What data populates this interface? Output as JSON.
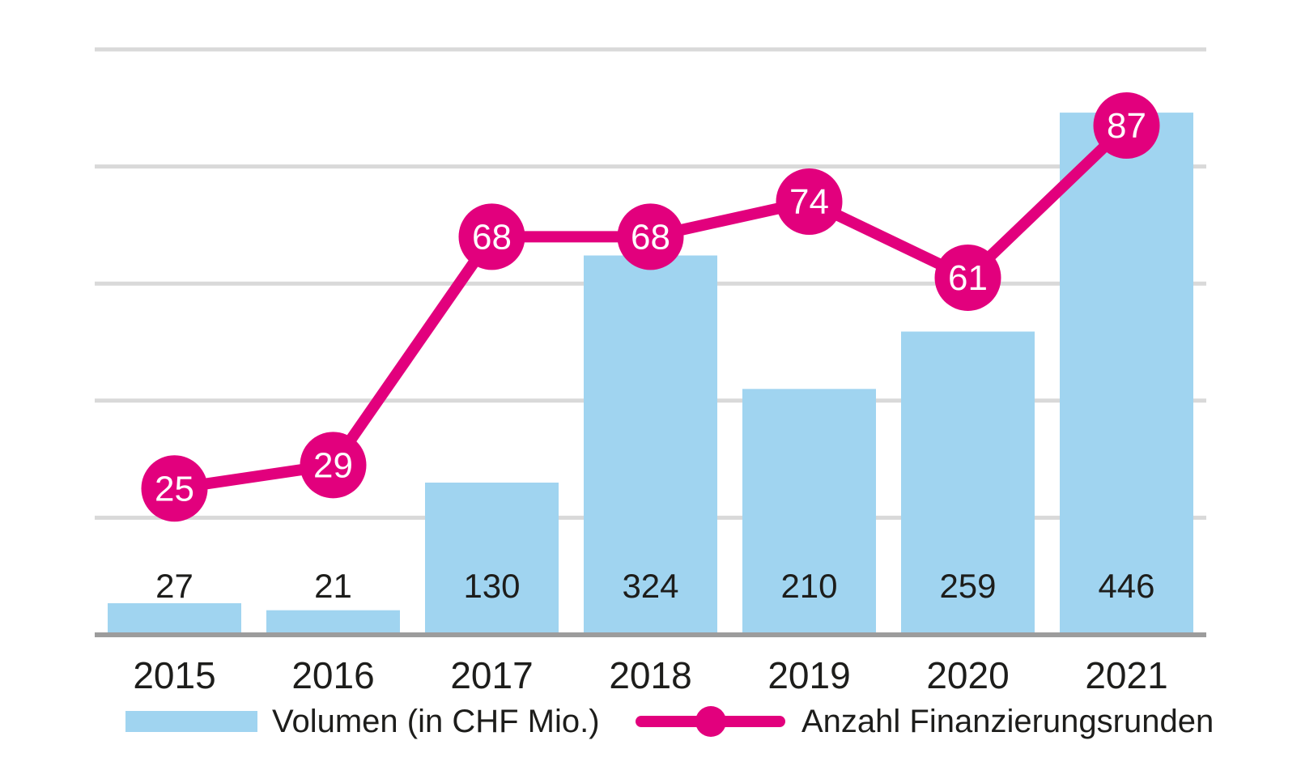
{
  "chart_data": {
    "type": "bar",
    "subtype": "bar-and-line-combo",
    "categories": [
      "2015",
      "2016",
      "2017",
      "2018",
      "2019",
      "2020",
      "2021"
    ],
    "series": [
      {
        "name": "Volumen (in CHF Mio.)",
        "type": "bar",
        "values": [
          27,
          21,
          130,
          324,
          210,
          259,
          446
        ],
        "color": "#A0D4F0",
        "axis": {
          "min": 0,
          "max": 500,
          "grid_step": 100,
          "tick_labels_visible": false
        }
      },
      {
        "name": "Anzahl Finanzierungsrunden",
        "type": "line",
        "values": [
          25,
          29,
          68,
          68,
          74,
          61,
          87
        ],
        "color": "#E2007D",
        "axis": {
          "min": 0,
          "max": 100,
          "tick_labels_visible": false
        }
      }
    ],
    "title": "",
    "xlabel": "",
    "ylabel": "",
    "grid": true,
    "gridlines_horizontal_count": 5,
    "data_labels_visible": true,
    "legend_position": "bottom"
  },
  "legend": {
    "volumen_label": "Volumen (in CHF Mio.)",
    "anzahl_label": "Anzahl Finanzierungsrunden"
  },
  "colors": {
    "background": "#FFFFFF",
    "bar_fill": "#A0D4F0",
    "line_stroke": "#E2007D",
    "gridline": "#D9D9D9",
    "axis_line": "#9C9C9C",
    "label_text": "#1D1D1B",
    "marker_label_text": "#FFFFFF"
  }
}
